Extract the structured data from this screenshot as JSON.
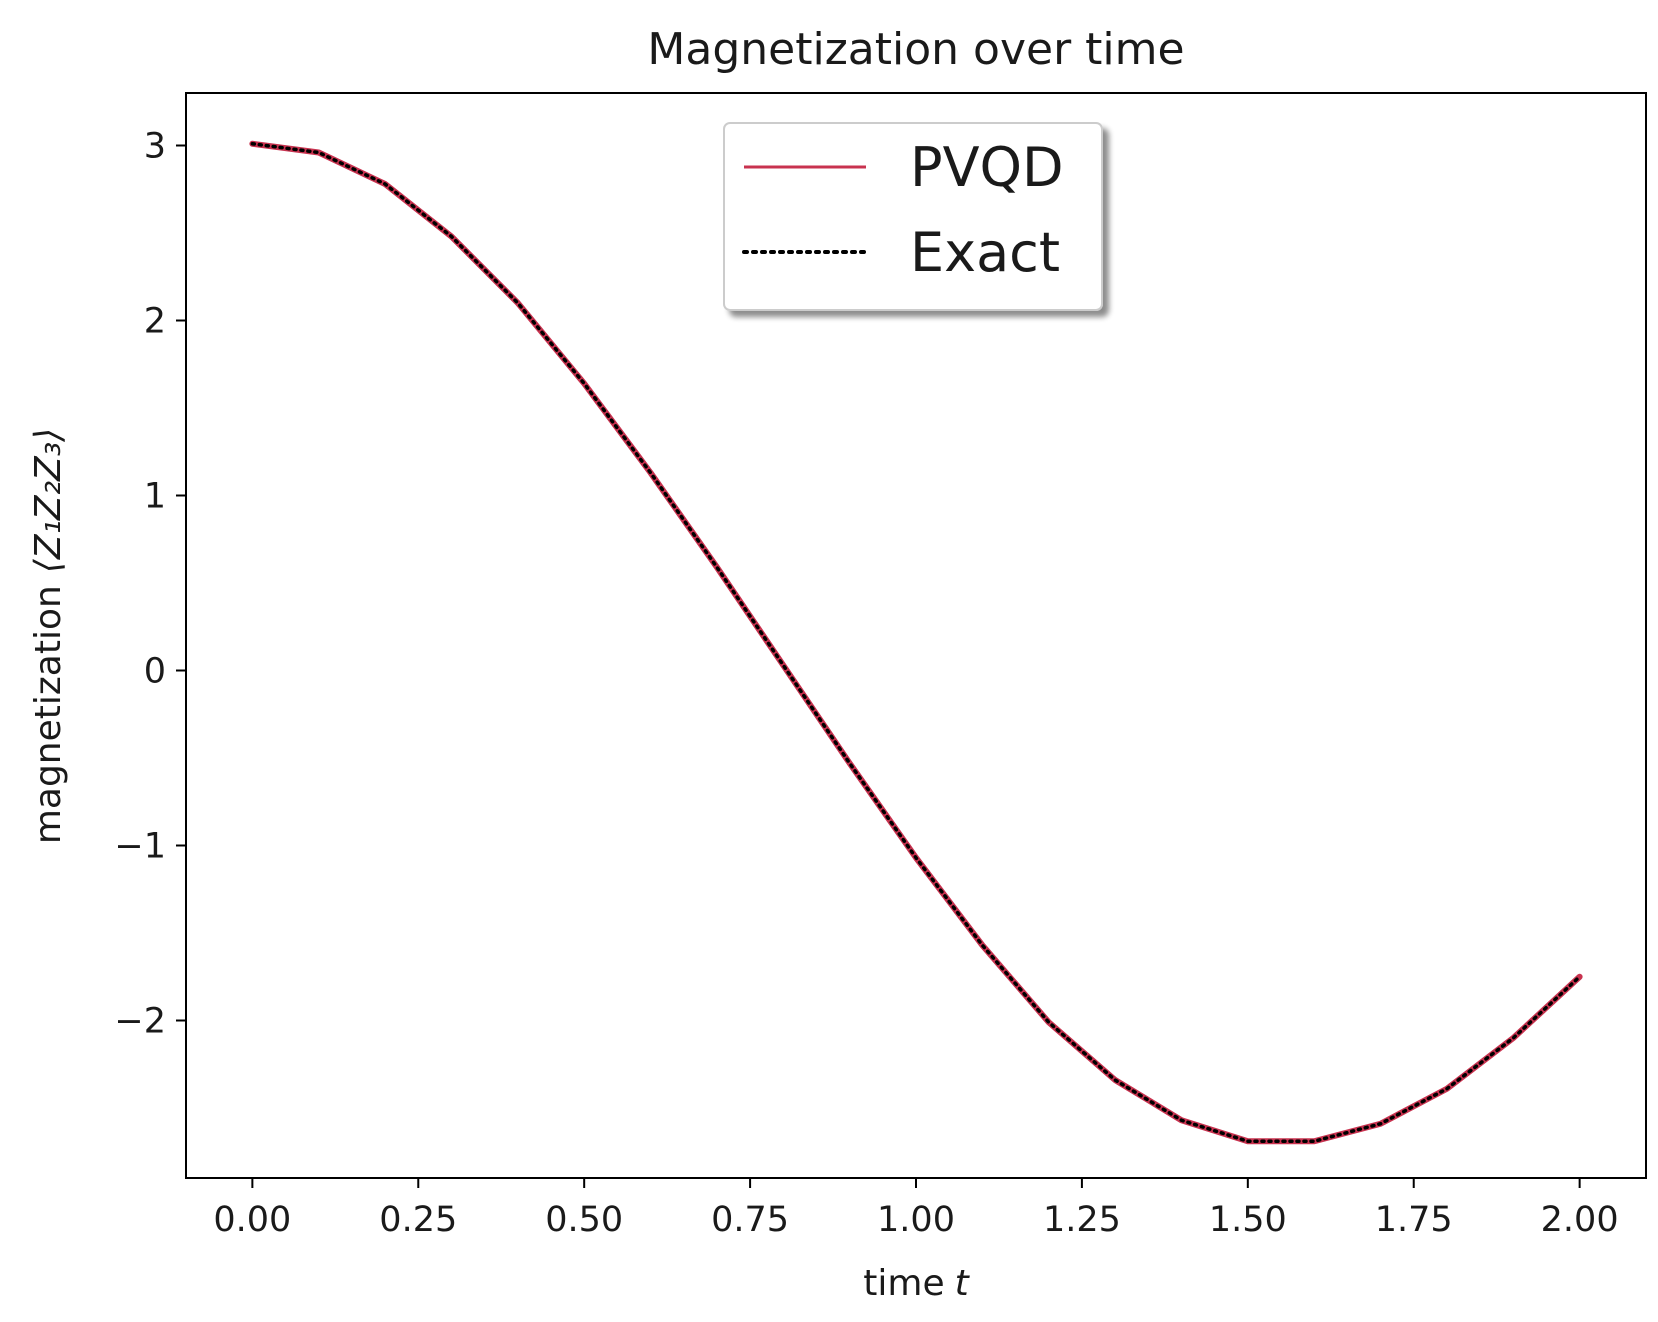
{
  "chart_data": {
    "type": "line",
    "title": "Magnetization over time",
    "xlabel": "time",
    "xlabel_var": "t",
    "ylabel_prefix": "magnetization",
    "ylabel_math": "⟨Z₁Z₂Z₃⟩",
    "xlim": [
      -0.1,
      2.1
    ],
    "ylim": [
      -2.9,
      3.3
    ],
    "xticks": [
      0.0,
      0.25,
      0.5,
      0.75,
      1.0,
      1.25,
      1.5,
      1.75,
      2.0
    ],
    "xtick_labels": [
      "0.00",
      "0.25",
      "0.50",
      "0.75",
      "1.00",
      "1.25",
      "1.50",
      "1.75",
      "2.00"
    ],
    "yticks": [
      3,
      2,
      1,
      0,
      -1,
      -2
    ],
    "ytick_labels": [
      "3",
      "2",
      "1",
      "0",
      "−1",
      "−2"
    ],
    "grid": false,
    "legend_position": "upper center",
    "x": [
      0.0,
      0.1,
      0.2,
      0.3,
      0.4,
      0.5,
      0.6,
      0.7,
      0.8,
      0.9,
      1.0,
      1.1,
      1.2,
      1.3,
      1.4,
      1.5,
      1.6,
      1.7,
      1.8,
      1.9,
      2.0
    ],
    "series": [
      {
        "name": "PVQD",
        "color": "#c8324f",
        "style": "solid",
        "values": [
          3.01,
          2.96,
          2.78,
          2.48,
          2.1,
          1.64,
          1.13,
          0.59,
          0.03,
          -0.53,
          -1.07,
          -1.57,
          -2.01,
          -2.34,
          -2.57,
          -2.69,
          -2.69,
          -2.59,
          -2.39,
          -2.1,
          -1.75
        ]
      },
      {
        "name": "Exact",
        "color": "#000000",
        "style": "dotted",
        "values": [
          3.01,
          2.96,
          2.78,
          2.48,
          2.1,
          1.64,
          1.13,
          0.59,
          0.03,
          -0.53,
          -1.07,
          -1.57,
          -2.01,
          -2.34,
          -2.57,
          -2.69,
          -2.69,
          -2.59,
          -2.39,
          -2.1,
          -1.75
        ]
      }
    ]
  }
}
